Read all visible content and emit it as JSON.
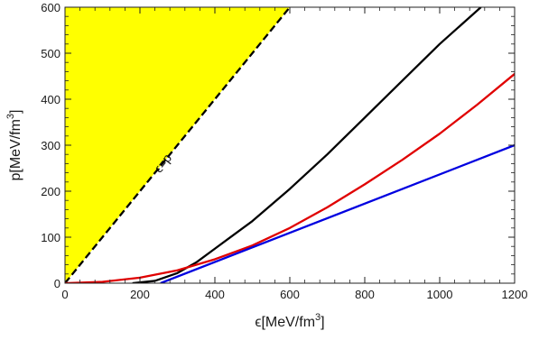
{
  "chart_data": {
    "type": "line",
    "xlabel": "ϵ[MeV/fm",
    "xlabel_sup": "3",
    "xlabel_end": "]",
    "ylabel": "p[MeV/fm",
    "ylabel_sup": "3",
    "ylabel_end": "]",
    "xlim": [
      0,
      1200
    ],
    "ylim": [
      0,
      600
    ],
    "xticks": [
      0,
      200,
      400,
      600,
      800,
      1000,
      1200
    ],
    "yticks": [
      0,
      100,
      200,
      300,
      400,
      500,
      600
    ],
    "frame_ticks": "inside, all four sides",
    "grid": false,
    "annotation": "ϵ=p",
    "shaded_region": {
      "color": "#ffff00",
      "vertices": [
        [
          0,
          0
        ],
        [
          0,
          600
        ],
        [
          600,
          600
        ]
      ]
    },
    "series": [
      {
        "color": "#000000",
        "style": "dashed",
        "x": [
          0,
          600
        ],
        "y": [
          0,
          600
        ]
      },
      {
        "color": "#000000",
        "style": "solid",
        "x": [
          180,
          240,
          300,
          350,
          400,
          500,
          600,
          700,
          800,
          900,
          1000,
          1110
        ],
        "y": [
          0,
          5,
          22,
          45,
          75,
          135,
          205,
          280,
          360,
          440,
          520,
          600
        ]
      },
      {
        "color": "#e00000",
        "style": "solid",
        "x": [
          0,
          100,
          200,
          300,
          400,
          500,
          600,
          700,
          800,
          900,
          1000,
          1100,
          1200
        ],
        "y": [
          0,
          3,
          12,
          28,
          52,
          82,
          120,
          165,
          215,
          268,
          325,
          388,
          455
        ]
      },
      {
        "color": "#0000e0",
        "style": "solid",
        "x": [
          255,
          1200
        ],
        "y": [
          0,
          300
        ]
      }
    ]
  }
}
